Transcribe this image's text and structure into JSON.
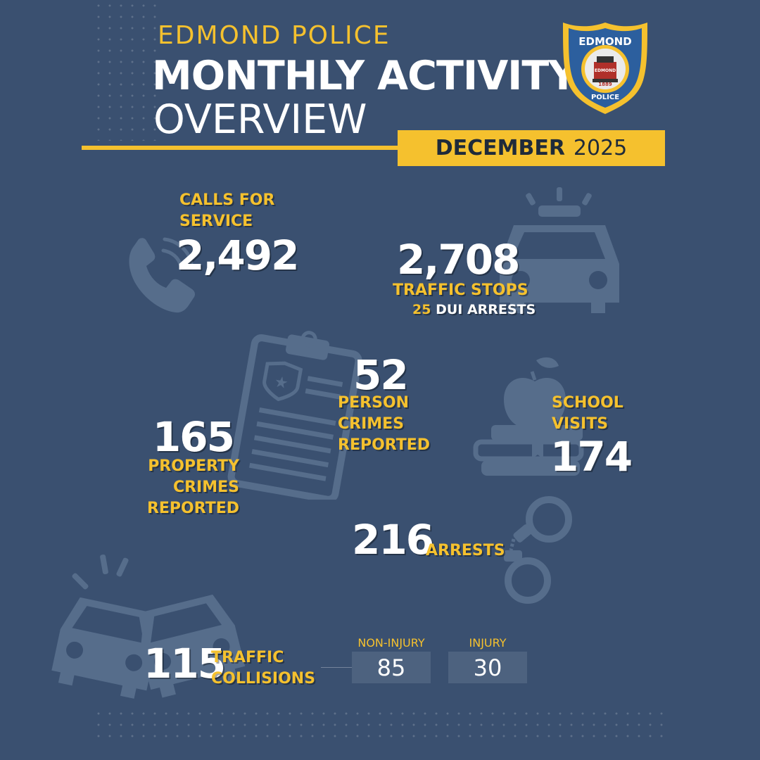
{
  "header": {
    "department": "EDMOND POLICE",
    "title_line1": "MONTHLY ACTIVITY",
    "title_line2": "OVERVIEW",
    "month": "DECEMBER",
    "year": "2025"
  },
  "badge": {
    "top_text": "EDMOND",
    "bottom_text": "POLICE",
    "center_text": "EDMOND",
    "year": "1889"
  },
  "stats": {
    "calls": {
      "label_line1": "CALLS FOR",
      "label_line2": "SERVICE",
      "value": "2,492"
    },
    "traffic_stops": {
      "value": "2,708",
      "label": "TRAFFIC STOPS",
      "dui_count": "25",
      "dui_label": "DUI ARRESTS"
    },
    "person_crimes": {
      "value": "52",
      "label_line1": "PERSON",
      "label_line2": "CRIMES",
      "label_line3": "REPORTED"
    },
    "property_crimes": {
      "value": "165",
      "label_line1": "PROPERTY",
      "label_line2": "CRIMES",
      "label_line3": "REPORTED"
    },
    "school_visits": {
      "label_line1": "SCHOOL",
      "label_line2": "VISITS",
      "value": "174"
    },
    "arrests": {
      "value": "216",
      "label": "ARRESTS"
    },
    "collisions": {
      "value": "115",
      "label_line1": "TRAFFIC",
      "label_line2": "COLLISIONS",
      "non_injury_label": "NON-INJURY",
      "non_injury_value": "85",
      "injury_label": "INJURY",
      "injury_value": "30"
    }
  },
  "icons": [
    "phone-icon",
    "police-car-icon",
    "clipboard-icon",
    "apple-books-icon",
    "handcuffs-icon",
    "car-crash-icon"
  ],
  "colors": {
    "background": "#3a5070",
    "accent": "#f5c12e",
    "icon_tint": "#566d8b",
    "box": "#4d627f"
  }
}
